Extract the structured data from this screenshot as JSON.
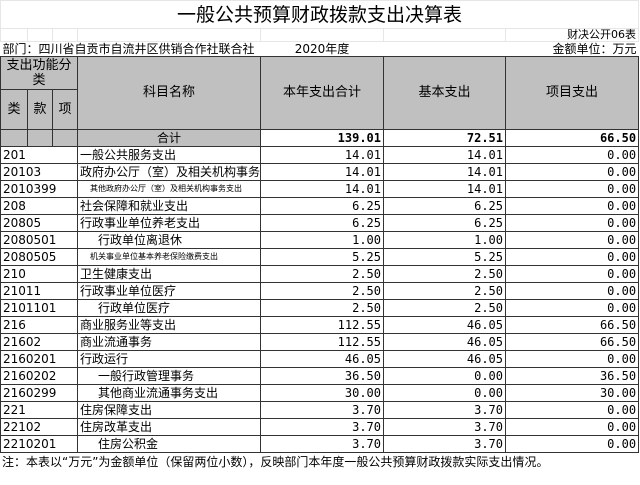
{
  "title": "一般公共预算财政拨款支出决算表",
  "form_no": "财决公开06表",
  "department": "部门：四川省自贡市自流井区供销合作社联合社",
  "year": "2020年度",
  "unit": "金额单位：万元",
  "headers": {
    "func_class": "支出功能分类",
    "lei": "类",
    "kuan": "款",
    "xiang": "项",
    "name": "科目名称",
    "total": "本年支出合计",
    "basic": "基本支出",
    "project": "项目支出"
  },
  "total_row": {
    "label": "合计",
    "total": "139.01",
    "basic": "72.51",
    "project": "66.50"
  },
  "rows": [
    {
      "code": "201",
      "name": "一般公共服务支出",
      "total": "14.01",
      "basic": "14.01",
      "project": "0.00"
    },
    {
      "code": "20103",
      "name": "政府办公厅（室）及相关机构事务",
      "total": "14.01",
      "basic": "14.01",
      "project": "0.00"
    },
    {
      "code": "2010399",
      "name": "其他政府办公厅（室）及相关机构事务支出",
      "total": "14.01",
      "basic": "14.01",
      "project": "0.00"
    },
    {
      "code": "208",
      "name": "社会保障和就业支出",
      "total": "6.25",
      "basic": "6.25",
      "project": "0.00"
    },
    {
      "code": "20805",
      "name": "行政事业单位养老支出",
      "total": "6.25",
      "basic": "6.25",
      "project": "0.00"
    },
    {
      "code": "2080501",
      "name": "行政单位离退休",
      "total": "1.00",
      "basic": "1.00",
      "project": "0.00"
    },
    {
      "code": "2080505",
      "name": "机关事业单位基本养老保险缴费支出",
      "total": "5.25",
      "basic": "5.25",
      "project": "0.00"
    },
    {
      "code": "210",
      "name": "卫生健康支出",
      "total": "2.50",
      "basic": "2.50",
      "project": "0.00"
    },
    {
      "code": "21011",
      "name": "行政事业单位医疗",
      "total": "2.50",
      "basic": "2.50",
      "project": "0.00"
    },
    {
      "code": "2101101",
      "name": "行政单位医疗",
      "total": "2.50",
      "basic": "2.50",
      "project": "0.00"
    },
    {
      "code": "216",
      "name": "商业服务业等支出",
      "total": "112.55",
      "basic": "46.05",
      "project": "66.50"
    },
    {
      "code": "21602",
      "name": "商业流通事务",
      "total": "112.55",
      "basic": "46.05",
      "project": "66.50"
    },
    {
      "code": "2160201",
      "name": "行政运行",
      "total": "46.05",
      "basic": "46.05",
      "project": "0.00"
    },
    {
      "code": "2160202",
      "name": "一般行政管理事务",
      "total": "36.50",
      "basic": "0.00",
      "project": "36.50"
    },
    {
      "code": "2160299",
      "name": "其他商业流通事务支出",
      "total": "30.00",
      "basic": "0.00",
      "project": "30.00"
    },
    {
      "code": "221",
      "name": "住房保障支出",
      "total": "3.70",
      "basic": "3.70",
      "project": "0.00"
    },
    {
      "code": "22102",
      "name": "住房改革支出",
      "total": "3.70",
      "basic": "3.70",
      "project": "0.00"
    },
    {
      "code": "2210201",
      "name": "住房公积金",
      "total": "3.70",
      "basic": "3.70",
      "project": "0.00"
    }
  ],
  "note": "注：本表以“万元”为金额单位（保留两位小数），反映部门本年度一般公共预算财政拨款实际支出情况。"
}
